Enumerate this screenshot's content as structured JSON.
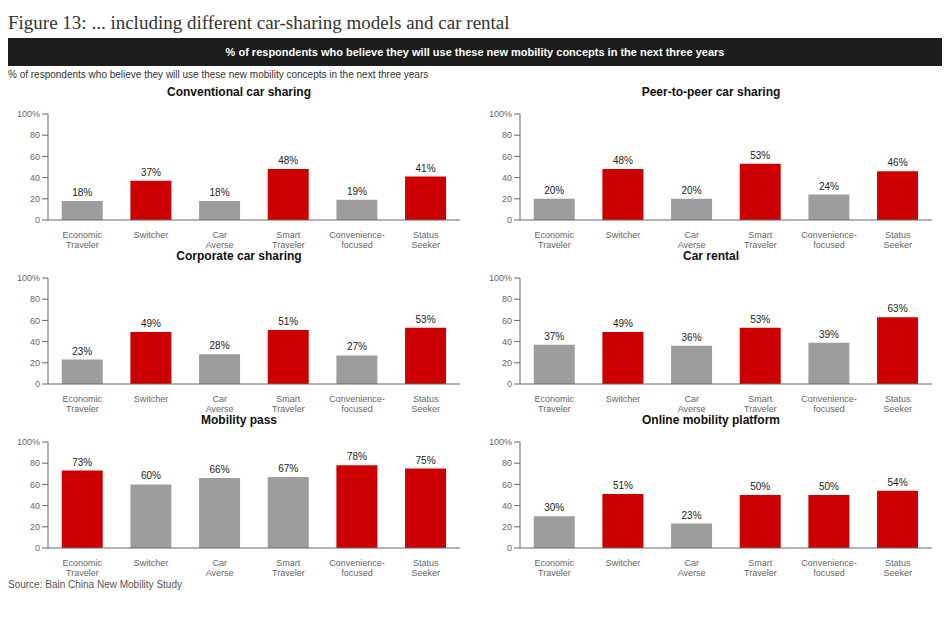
{
  "title": "Figure 13: ... including different car-sharing models and car rental",
  "subtitle": "% of respondents who believe they will use these new mobility concepts in the next three years",
  "annotations": [
    "% of respondents who believe they will use these new mobility concepts in the next three years",
    "Source: Bain China New Mobility Study"
  ],
  "chart_data": [
    {
      "type": "bar",
      "title": "Conventional car sharing",
      "categories": [
        "Economic\nTraveler",
        "Switcher",
        "Car\nAverse",
        "Smart\nTraveler",
        "Convenience-\nfocused",
        "Status\nSeeker"
      ],
      "values": [
        18,
        37,
        18,
        48,
        19,
        41
      ],
      "value_labels": [
        "18%",
        "37%",
        "18%",
        "48%",
        "19%",
        "41%"
      ],
      "colors": [
        "#9d9d9d",
        "#cc0000",
        "#9d9d9d",
        "#cc0000",
        "#9d9d9d",
        "#cc0000"
      ],
      "ylim": [
        0,
        100
      ],
      "yticks": [
        0,
        20,
        40,
        60,
        80,
        {
          "value": 100,
          "label": "100%"
        }
      ],
      "grid": false,
      "data_labels": true
    },
    {
      "type": "bar",
      "title": "Peer-to-peer car sharing",
      "categories": [
        "Economic\nTraveler",
        "Switcher",
        "Car\nAverse",
        "Smart\nTraveler",
        "Convenience-\nfocused",
        "Status\nSeeker"
      ],
      "values": [
        20,
        48,
        20,
        53,
        24,
        46
      ],
      "value_labels": [
        "20%",
        "48%",
        "20%",
        "53%",
        "24%",
        "46%"
      ],
      "colors": [
        "#9d9d9d",
        "#cc0000",
        "#9d9d9d",
        "#cc0000",
        "#9d9d9d",
        "#cc0000"
      ],
      "ylim": [
        0,
        100
      ],
      "yticks": [
        0,
        20,
        40,
        60,
        80,
        {
          "value": 100,
          "label": "100%"
        }
      ],
      "grid": false,
      "data_labels": true
    },
    {
      "type": "bar",
      "title": "Corporate car sharing",
      "categories": [
        "Economic\nTraveler",
        "Switcher",
        "Car\nAverse",
        "Smart\nTraveler",
        "Convenience-\nfocused",
        "Status\nSeeker"
      ],
      "values": [
        23,
        49,
        28,
        51,
        27,
        53
      ],
      "value_labels": [
        "23%",
        "49%",
        "28%",
        "51%",
        "27%",
        "53%"
      ],
      "colors": [
        "#9d9d9d",
        "#cc0000",
        "#9d9d9d",
        "#cc0000",
        "#9d9d9d",
        "#cc0000"
      ],
      "ylim": [
        0,
        100
      ],
      "yticks": [
        0,
        20,
        40,
        60,
        80,
        {
          "value": 100,
          "label": "100%"
        }
      ],
      "grid": false,
      "data_labels": true
    },
    {
      "type": "bar",
      "title": "Car rental",
      "categories": [
        "Economic\nTraveler",
        "Switcher",
        "Car\nAverse",
        "Smart\nTraveler",
        "Convenience-\nfocused",
        "Status\nSeeker"
      ],
      "values": [
        37,
        49,
        36,
        53,
        39,
        63
      ],
      "value_labels": [
        "37%",
        "49%",
        "36%",
        "53%",
        "39%",
        "63%"
      ],
      "colors": [
        "#9d9d9d",
        "#cc0000",
        "#9d9d9d",
        "#cc0000",
        "#9d9d9d",
        "#cc0000"
      ],
      "ylim": [
        0,
        100
      ],
      "yticks": [
        0,
        20,
        40,
        60,
        80,
        {
          "value": 100,
          "label": "100%"
        }
      ],
      "grid": false,
      "data_labels": true
    },
    {
      "type": "bar",
      "title": "Mobility pass",
      "categories": [
        "Economic\nTraveler",
        "Switcher",
        "Car\nAverse",
        "Smart\nTraveler",
        "Convenience-\nfocused",
        "Status\nSeeker"
      ],
      "values": [
        73,
        60,
        66,
        67,
        78,
        75
      ],
      "value_labels": [
        "73%",
        "60%",
        "66%",
        "67%",
        "78%",
        "75%"
      ],
      "colors": [
        "#cc0000",
        "#9d9d9d",
        "#9d9d9d",
        "#9d9d9d",
        "#cc0000",
        "#cc0000"
      ],
      "ylim": [
        0,
        100
      ],
      "yticks": [
        0,
        20,
        40,
        60,
        80,
        {
          "value": 100,
          "label": "100%"
        }
      ],
      "grid": false,
      "data_labels": true
    },
    {
      "type": "bar",
      "title": "Online mobility platform",
      "categories": [
        "Economic\nTraveler",
        "Switcher",
        "Car\nAverse",
        "Smart\nTraveler",
        "Convenience-\nfocused",
        "Status\nSeeker"
      ],
      "values": [
        30,
        51,
        23,
        50,
        50,
        54
      ],
      "value_labels": [
        "30%",
        "51%",
        "23%",
        "50%",
        "50%",
        "54%"
      ],
      "colors": [
        "#9d9d9d",
        "#cc0000",
        "#9d9d9d",
        "#cc0000",
        "#cc0000",
        "#cc0000"
      ],
      "ylim": [
        0,
        100
      ],
      "yticks": [
        0,
        20,
        40,
        60,
        80,
        {
          "value": 100,
          "label": "100%"
        }
      ],
      "grid": false,
      "data_labels": true
    }
  ]
}
